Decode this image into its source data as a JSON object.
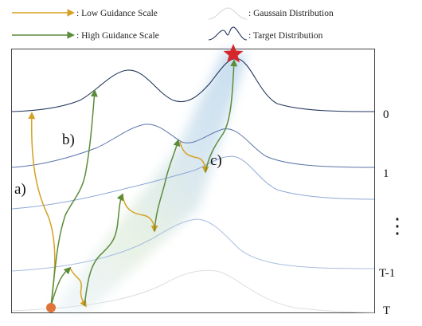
{
  "legend": {
    "low_guidance": ": Low Guidance Scale",
    "high_guidance": ": High Guidance Scale",
    "gaussian": ": Gaussain Distribution",
    "target": ": Target Distribution"
  },
  "labels": {
    "a": "a)",
    "b": "b)",
    "c": "c)"
  },
  "timesteps": {
    "t0": "0",
    "t1": "1",
    "dots": "⋮",
    "tm1": "T-1",
    "tT": "T"
  },
  "colors": {
    "low_guidance": "#D6A021",
    "high_guidance": "#5B8C3A",
    "target_curve": "#24365E",
    "gaussian_curve": "#C9CFD6",
    "star": "#D4262B",
    "start_dot": "#E0743A",
    "glow": "#9EC3DD"
  },
  "icons": {
    "target_marker": "star",
    "start_marker": "circle"
  }
}
